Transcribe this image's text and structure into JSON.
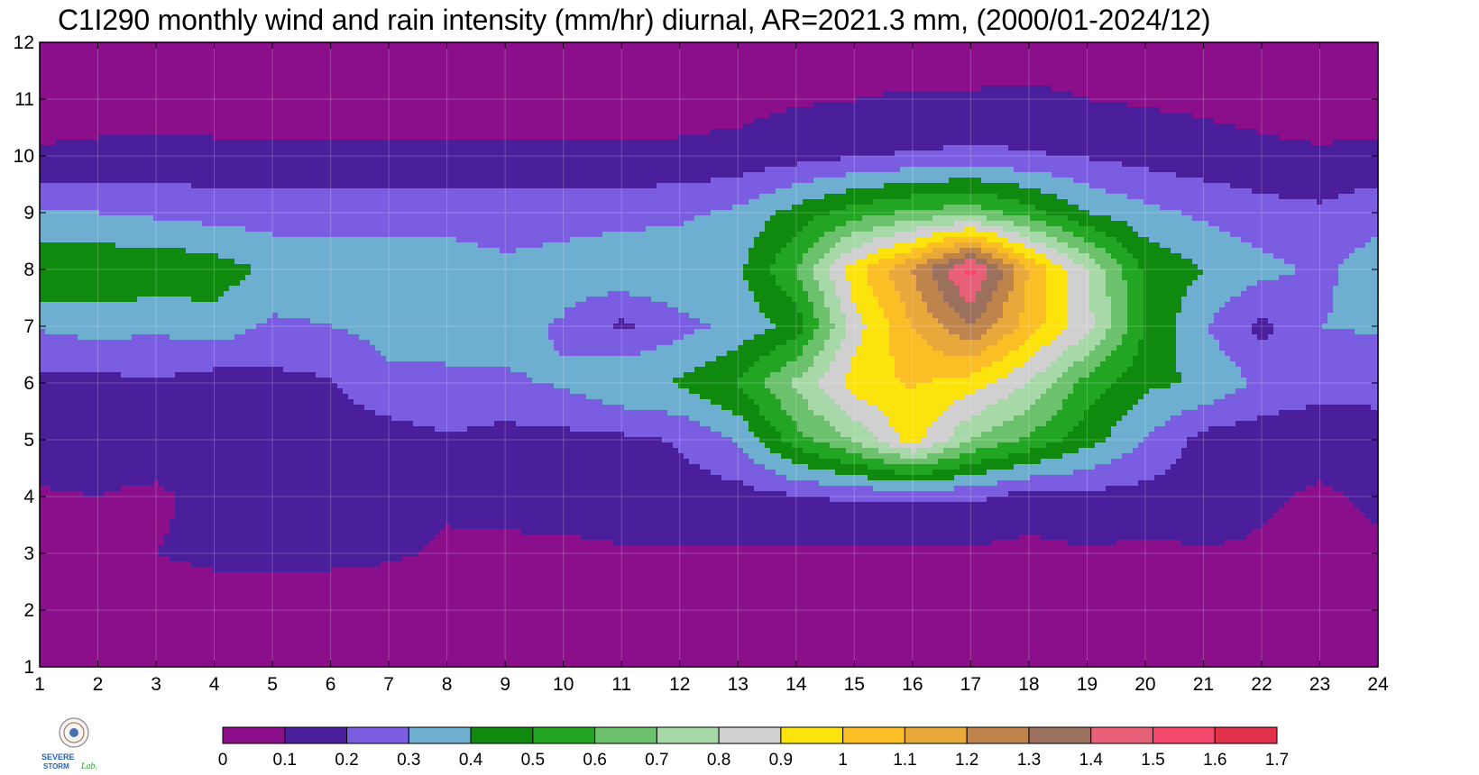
{
  "title": "C1I290 monthly wind and rain intensity (mm/hr) diurnal, AR=2021.3 mm, (2000/01-2024/12)",
  "logo": {
    "text1": "SEVERE",
    "text2": "STORM",
    "text3": "Lab."
  },
  "chart_data": {
    "type": "heatmap",
    "subtype": "filled-contour",
    "title": "C1I290 monthly wind and rain intensity (mm/hr) diurnal, AR=2021.3 mm, (2000/01-2024/12)",
    "xlabel": "",
    "ylabel": "",
    "xlim": [
      1,
      24
    ],
    "ylim": [
      1,
      12
    ],
    "x_ticks": [
      "1",
      "2",
      "3",
      "4",
      "5",
      "6",
      "7",
      "8",
      "9",
      "10",
      "11",
      "12",
      "13",
      "14",
      "15",
      "16",
      "17",
      "18",
      "19",
      "20",
      "21",
      "22",
      "23",
      "24"
    ],
    "y_ticks": [
      "1",
      "2",
      "3",
      "4",
      "5",
      "6",
      "7",
      "8",
      "9",
      "10",
      "11",
      "12"
    ],
    "grid": true,
    "colorbar": {
      "position": "bottom",
      "levels": [
        0,
        0.1,
        0.2,
        0.3,
        0.4,
        0.5,
        0.6,
        0.7,
        0.8,
        0.9,
        1,
        1.1,
        1.2,
        1.3,
        1.4,
        1.5,
        1.6,
        1.7
      ],
      "labels": [
        "0",
        "0.1",
        "0.2",
        "0.3",
        "0.4",
        "0.5",
        "0.6",
        "0.7",
        "0.8",
        "0.9",
        "1",
        "1.1",
        "1.2",
        "1.3",
        "1.4",
        "1.5",
        "1.6",
        "1.7"
      ],
      "colors": [
        "#8b0f8b",
        "#4b1e9b",
        "#7b5de1",
        "#6eaed1",
        "#0f8a0f",
        "#22a522",
        "#6cc26c",
        "#a7d8a7",
        "#d0d0d0",
        "#fde30c",
        "#fbbe24",
        "#e8a83a",
        "#be844c",
        "#9b705c",
        "#e86078",
        "#f5476b",
        "#e0304a"
      ]
    },
    "x": [
      1,
      2,
      3,
      4,
      5,
      6,
      7,
      8,
      9,
      10,
      11,
      12,
      13,
      14,
      15,
      16,
      17,
      18,
      19,
      20,
      21,
      22,
      23,
      24
    ],
    "y": [
      1,
      2,
      3,
      4,
      5,
      6,
      7,
      8,
      9,
      10,
      11,
      12
    ],
    "values": [
      [
        0.04,
        0.04,
        0.04,
        0.04,
        0.04,
        0.04,
        0.04,
        0.04,
        0.04,
        0.04,
        0.04,
        0.04,
        0.04,
        0.04,
        0.04,
        0.04,
        0.04,
        0.04,
        0.04,
        0.04,
        0.04,
        0.04,
        0.04,
        0.04
      ],
      [
        0.05,
        0.06,
        0.05,
        0.05,
        0.05,
        0.05,
        0.05,
        0.05,
        0.05,
        0.05,
        0.05,
        0.05,
        0.05,
        0.05,
        0.05,
        0.05,
        0.05,
        0.05,
        0.05,
        0.05,
        0.05,
        0.05,
        0.05,
        0.05
      ],
      [
        0.07,
        0.08,
        0.1,
        0.12,
        0.12,
        0.12,
        0.11,
        0.09,
        0.08,
        0.08,
        0.09,
        0.09,
        0.09,
        0.08,
        0.08,
        0.08,
        0.08,
        0.07,
        0.09,
        0.08,
        0.09,
        0.09,
        0.08,
        0.09
      ],
      [
        0.09,
        0.1,
        0.08,
        0.14,
        0.14,
        0.14,
        0.14,
        0.11,
        0.13,
        0.14,
        0.15,
        0.15,
        0.16,
        0.19,
        0.22,
        0.22,
        0.22,
        0.16,
        0.17,
        0.16,
        0.16,
        0.11,
        0.09,
        0.11
      ],
      [
        0.15,
        0.14,
        0.16,
        0.13,
        0.14,
        0.14,
        0.15,
        0.19,
        0.16,
        0.17,
        0.18,
        0.21,
        0.31,
        0.56,
        0.71,
        0.95,
        0.7,
        0.58,
        0.44,
        0.3,
        0.16,
        0.14,
        0.13,
        0.15
      ],
      [
        0.17,
        0.17,
        0.19,
        0.15,
        0.17,
        0.19,
        0.28,
        0.28,
        0.29,
        0.31,
        0.39,
        0.41,
        0.51,
        0.72,
        0.95,
        1.01,
        0.95,
        0.8,
        0.56,
        0.42,
        0.39,
        0.28,
        0.24,
        0.24
      ],
      [
        0.31,
        0.34,
        0.32,
        0.36,
        0.28,
        0.3,
        0.33,
        0.34,
        0.33,
        0.29,
        0.18,
        0.27,
        0.33,
        0.44,
        0.85,
        1.1,
        1.3,
        1.05,
        0.84,
        0.5,
        0.31,
        0.17,
        0.3,
        0.31
      ],
      [
        0.5,
        0.48,
        0.48,
        0.45,
        0.38,
        0.37,
        0.36,
        0.36,
        0.32,
        0.34,
        0.38,
        0.38,
        0.38,
        0.6,
        0.96,
        1.2,
        1.55,
        1.1,
        0.8,
        0.48,
        0.4,
        0.33,
        0.28,
        0.35
      ],
      [
        0.3,
        0.3,
        0.28,
        0.26,
        0.25,
        0.25,
        0.26,
        0.25,
        0.25,
        0.26,
        0.26,
        0.28,
        0.32,
        0.44,
        0.55,
        0.62,
        0.66,
        0.55,
        0.4,
        0.33,
        0.28,
        0.24,
        0.22,
        0.27
      ],
      [
        0.11,
        0.12,
        0.13,
        0.12,
        0.12,
        0.12,
        0.12,
        0.12,
        0.12,
        0.12,
        0.12,
        0.12,
        0.13,
        0.16,
        0.19,
        0.21,
        0.22,
        0.21,
        0.19,
        0.16,
        0.14,
        0.12,
        0.11,
        0.12
      ],
      [
        0.06,
        0.06,
        0.06,
        0.06,
        0.06,
        0.06,
        0.06,
        0.06,
        0.06,
        0.06,
        0.06,
        0.06,
        0.07,
        0.09,
        0.1,
        0.11,
        0.11,
        0.12,
        0.1,
        0.09,
        0.08,
        0.07,
        0.06,
        0.06
      ],
      [
        0.05,
        0.05,
        0.05,
        0.05,
        0.05,
        0.05,
        0.05,
        0.06,
        0.05,
        0.05,
        0.05,
        0.05,
        0.05,
        0.05,
        0.05,
        0.05,
        0.05,
        0.05,
        0.05,
        0.05,
        0.05,
        0.05,
        0.05,
        0.05
      ]
    ]
  }
}
